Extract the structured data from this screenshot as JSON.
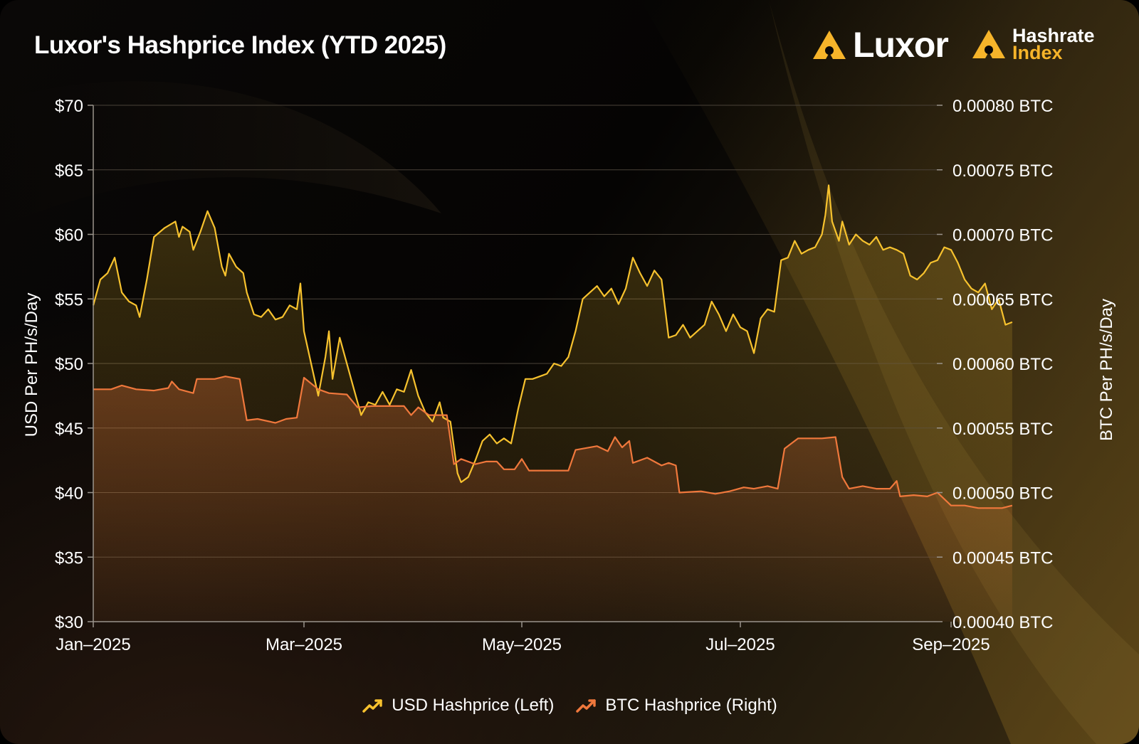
{
  "header": {
    "title": "Luxor's Hashprice Index (YTD 2025)",
    "brand_luxor": "Luxor",
    "brand_hri_line1": "Hashrate",
    "brand_hri_line2": "Index"
  },
  "colors": {
    "usd_line": "#f7c22e",
    "btc_line": "#f0783c",
    "grid": "#4a4238",
    "brand_accent": "#f6b42a"
  },
  "chart_data": {
    "type": "line",
    "title": "Luxor's Hashprice Index (YTD 2025)",
    "xlabel": "",
    "ylabel_left": "USD Per PH/s/Day",
    "ylabel_right": "BTC Per PH/s/Day",
    "ylim_left": [
      30,
      70
    ],
    "ylim_right": [
      0.0004,
      0.0008
    ],
    "x_ticks": [
      "Jan–2025",
      "Mar–2025",
      "May–2025",
      "Jul–2025",
      "Sep–2025"
    ],
    "y_ticks_left": [
      "$70",
      "$65",
      "$60",
      "$55",
      "$50",
      "$45",
      "$40",
      "$35",
      "$30"
    ],
    "y_ticks_right": [
      "0.00080 BTC",
      "0.00075 BTC",
      "0.00070 BTC",
      "0.00065 BTC",
      "0.00060 BTC",
      "0.00055 BTC",
      "0.00050 BTC",
      "0.00045 BTC",
      "0.00040 BTC"
    ],
    "grid": true,
    "legend_position": "bottom-center",
    "series": [
      {
        "name": "USD Hashprice (Left)",
        "axis": "left",
        "points": [
          [
            "2025-01-01",
            54.5
          ],
          [
            "2025-01-03",
            56.5
          ],
          [
            "2025-01-05",
            57
          ],
          [
            "2025-01-07",
            58.2
          ],
          [
            "2025-01-09",
            55.5
          ],
          [
            "2025-01-11",
            54.8
          ],
          [
            "2025-01-13",
            54.5
          ],
          [
            "2025-01-14",
            53.6
          ],
          [
            "2025-01-16",
            56.5
          ],
          [
            "2025-01-18",
            59.8
          ],
          [
            "2025-01-21",
            60.5
          ],
          [
            "2025-01-24",
            61
          ],
          [
            "2025-01-25",
            59.8
          ],
          [
            "2025-01-26",
            60.6
          ],
          [
            "2025-01-28",
            60.2
          ],
          [
            "2025-01-29",
            58.8
          ],
          [
            "2025-01-31",
            60.2
          ],
          [
            "2025-02-02",
            61.8
          ],
          [
            "2025-02-04",
            60.5
          ],
          [
            "2025-02-06",
            57.5
          ],
          [
            "2025-02-07",
            56.8
          ],
          [
            "2025-02-08",
            58.5
          ],
          [
            "2025-02-10",
            57.5
          ],
          [
            "2025-02-12",
            57
          ],
          [
            "2025-02-13",
            55.5
          ],
          [
            "2025-02-15",
            53.8
          ],
          [
            "2025-02-17",
            53.6
          ],
          [
            "2025-02-19",
            54.2
          ],
          [
            "2025-02-21",
            53.4
          ],
          [
            "2025-02-23",
            53.6
          ],
          [
            "2025-02-25",
            54.5
          ],
          [
            "2025-02-27",
            54.2
          ],
          [
            "2025-02-28",
            56.2
          ],
          [
            "2025-03-01",
            52.5
          ],
          [
            "2025-03-03",
            50
          ],
          [
            "2025-03-05",
            47.5
          ],
          [
            "2025-03-07",
            50.5
          ],
          [
            "2025-03-08",
            52.5
          ],
          [
            "2025-03-09",
            48.8
          ],
          [
            "2025-03-11",
            52
          ],
          [
            "2025-03-13",
            50
          ],
          [
            "2025-03-15",
            48
          ],
          [
            "2025-03-17",
            46
          ],
          [
            "2025-03-19",
            47
          ],
          [
            "2025-03-21",
            46.8
          ],
          [
            "2025-03-23",
            47.8
          ],
          [
            "2025-03-25",
            46.8
          ],
          [
            "2025-03-27",
            48
          ],
          [
            "2025-03-29",
            47.8
          ],
          [
            "2025-03-31",
            49.5
          ],
          [
            "2025-04-02",
            47.5
          ],
          [
            "2025-04-04",
            46.2
          ],
          [
            "2025-04-06",
            45.5
          ],
          [
            "2025-04-08",
            47
          ],
          [
            "2025-04-09",
            45.8
          ],
          [
            "2025-04-11",
            45.5
          ],
          [
            "2025-04-13",
            41.5
          ],
          [
            "2025-04-14",
            40.8
          ],
          [
            "2025-04-16",
            41.2
          ],
          [
            "2025-04-18",
            42.5
          ],
          [
            "2025-04-20",
            44
          ],
          [
            "2025-04-22",
            44.5
          ],
          [
            "2025-04-24",
            43.8
          ],
          [
            "2025-04-26",
            44.2
          ],
          [
            "2025-04-28",
            43.8
          ],
          [
            "2025-04-30",
            46.5
          ],
          [
            "2025-05-02",
            48.8
          ],
          [
            "2025-05-04",
            48.8
          ],
          [
            "2025-05-06",
            49
          ],
          [
            "2025-05-08",
            49.2
          ],
          [
            "2025-05-10",
            50
          ],
          [
            "2025-05-12",
            49.8
          ],
          [
            "2025-05-14",
            50.5
          ],
          [
            "2025-05-16",
            52.5
          ],
          [
            "2025-05-18",
            55
          ],
          [
            "2025-05-20",
            55.5
          ],
          [
            "2025-05-22",
            56
          ],
          [
            "2025-05-24",
            55.2
          ],
          [
            "2025-05-26",
            55.8
          ],
          [
            "2025-05-28",
            54.6
          ],
          [
            "2025-05-30",
            55.8
          ],
          [
            "2025-06-01",
            58.2
          ],
          [
            "2025-06-03",
            57
          ],
          [
            "2025-06-05",
            56
          ],
          [
            "2025-06-07",
            57.2
          ],
          [
            "2025-06-09",
            56.5
          ],
          [
            "2025-06-11",
            52
          ],
          [
            "2025-06-13",
            52.2
          ],
          [
            "2025-06-15",
            53
          ],
          [
            "2025-06-17",
            52
          ],
          [
            "2025-06-19",
            52.5
          ],
          [
            "2025-06-21",
            53
          ],
          [
            "2025-06-23",
            54.8
          ],
          [
            "2025-06-25",
            53.8
          ],
          [
            "2025-06-27",
            52.5
          ],
          [
            "2025-06-29",
            53.8
          ],
          [
            "2025-07-01",
            52.8
          ],
          [
            "2025-07-03",
            52.5
          ],
          [
            "2025-07-05",
            50.8
          ],
          [
            "2025-07-07",
            53.5
          ],
          [
            "2025-07-09",
            54.2
          ],
          [
            "2025-07-11",
            54
          ],
          [
            "2025-07-13",
            58
          ],
          [
            "2025-07-15",
            58.2
          ],
          [
            "2025-07-17",
            59.5
          ],
          [
            "2025-07-19",
            58.5
          ],
          [
            "2025-07-21",
            58.8
          ],
          [
            "2025-07-23",
            59
          ],
          [
            "2025-07-25",
            60
          ],
          [
            "2025-07-26",
            61.5
          ],
          [
            "2025-07-27",
            63.8
          ],
          [
            "2025-07-28",
            61
          ],
          [
            "2025-07-30",
            59.5
          ],
          [
            "2025-07-31",
            61
          ],
          [
            "2025-08-02",
            59.2
          ],
          [
            "2025-08-04",
            60
          ],
          [
            "2025-08-06",
            59.5
          ],
          [
            "2025-08-08",
            59.2
          ],
          [
            "2025-08-10",
            59.8
          ],
          [
            "2025-08-12",
            58.8
          ],
          [
            "2025-08-14",
            59
          ],
          [
            "2025-08-16",
            58.8
          ],
          [
            "2025-08-18",
            58.5
          ],
          [
            "2025-08-20",
            56.8
          ],
          [
            "2025-08-22",
            56.5
          ],
          [
            "2025-08-24",
            57
          ],
          [
            "2025-08-26",
            57.8
          ],
          [
            "2025-08-28",
            58
          ],
          [
            "2025-08-30",
            59
          ],
          [
            "2025-09-01",
            58.8
          ],
          [
            "2025-09-03",
            57.8
          ],
          [
            "2025-09-05",
            56.5
          ],
          [
            "2025-09-07",
            55.8
          ],
          [
            "2025-09-09",
            55.5
          ],
          [
            "2025-09-11",
            56.2
          ],
          [
            "2025-09-13",
            54.2
          ],
          [
            "2025-09-15",
            55
          ],
          [
            "2025-09-17",
            53
          ],
          [
            "2025-09-19",
            53.2
          ]
        ]
      },
      {
        "name": "BTC Hashprice (Right)",
        "axis": "right",
        "points": [
          [
            "2025-01-01",
            0.00058
          ],
          [
            "2025-01-06",
            0.00058
          ],
          [
            "2025-01-09",
            0.000583
          ],
          [
            "2025-01-13",
            0.00058
          ],
          [
            "2025-01-18",
            0.000579
          ],
          [
            "2025-01-22",
            0.000581
          ],
          [
            "2025-01-23",
            0.000586
          ],
          [
            "2025-01-25",
            0.00058
          ],
          [
            "2025-01-29",
            0.000577
          ],
          [
            "2025-01-30",
            0.000588
          ],
          [
            "2025-02-04",
            0.000588
          ],
          [
            "2025-02-07",
            0.00059
          ],
          [
            "2025-02-11",
            0.000588
          ],
          [
            "2025-02-13",
            0.000556
          ],
          [
            "2025-02-16",
            0.000557
          ],
          [
            "2025-02-21",
            0.000554
          ],
          [
            "2025-02-24",
            0.000557
          ],
          [
            "2025-02-27",
            0.000558
          ],
          [
            "2025-03-01",
            0.000589
          ],
          [
            "2025-03-05",
            0.00058
          ],
          [
            "2025-03-08",
            0.000577
          ],
          [
            "2025-03-13",
            0.000576
          ],
          [
            "2025-03-16",
            0.000566
          ],
          [
            "2025-03-20",
            0.000567
          ],
          [
            "2025-03-24",
            0.000567
          ],
          [
            "2025-03-29",
            0.000567
          ],
          [
            "2025-03-31",
            0.00056
          ],
          [
            "2025-04-02",
            0.000566
          ],
          [
            "2025-04-05",
            0.00056
          ],
          [
            "2025-04-10",
            0.00056
          ],
          [
            "2025-04-12",
            0.000522
          ],
          [
            "2025-04-14",
            0.000526
          ],
          [
            "2025-04-18",
            0.000522
          ],
          [
            "2025-04-21",
            0.000524
          ],
          [
            "2025-04-24",
            0.000524
          ],
          [
            "2025-04-26",
            0.000518
          ],
          [
            "2025-04-29",
            0.000518
          ],
          [
            "2025-05-01",
            0.000526
          ],
          [
            "2025-05-03",
            0.000517
          ],
          [
            "2025-05-10",
            0.000517
          ],
          [
            "2025-05-14",
            0.000517
          ],
          [
            "2025-05-16",
            0.000533
          ],
          [
            "2025-05-22",
            0.000536
          ],
          [
            "2025-05-25",
            0.000532
          ],
          [
            "2025-05-27",
            0.000543
          ],
          [
            "2025-05-29",
            0.000535
          ],
          [
            "2025-05-31",
            0.00054
          ],
          [
            "2025-06-01",
            0.000523
          ],
          [
            "2025-06-05",
            0.000527
          ],
          [
            "2025-06-09",
            0.000521
          ],
          [
            "2025-06-11",
            0.000523
          ],
          [
            "2025-06-13",
            0.000521
          ],
          [
            "2025-06-14",
            0.0005
          ],
          [
            "2025-06-20",
            0.000501
          ],
          [
            "2025-06-24",
            0.000499
          ],
          [
            "2025-06-28",
            0.000501
          ],
          [
            "2025-07-02",
            0.000504
          ],
          [
            "2025-07-05",
            0.000503
          ],
          [
            "2025-07-09",
            0.000505
          ],
          [
            "2025-07-12",
            0.000503
          ],
          [
            "2025-07-14",
            0.000534
          ],
          [
            "2025-07-18",
            0.000542
          ],
          [
            "2025-07-25",
            0.000542
          ],
          [
            "2025-07-29",
            0.000543
          ],
          [
            "2025-07-31",
            0.000512
          ],
          [
            "2025-08-02",
            0.000503
          ],
          [
            "2025-08-06",
            0.000505
          ],
          [
            "2025-08-10",
            0.000503
          ],
          [
            "2025-08-14",
            0.000503
          ],
          [
            "2025-08-16",
            0.000509
          ],
          [
            "2025-08-17",
            0.000497
          ],
          [
            "2025-08-21",
            0.000498
          ],
          [
            "2025-08-25",
            0.000497
          ],
          [
            "2025-08-28",
            0.0005
          ],
          [
            "2025-09-01",
            0.00049
          ],
          [
            "2025-09-05",
            0.00049
          ],
          [
            "2025-09-09",
            0.000488
          ],
          [
            "2025-09-13",
            0.000488
          ],
          [
            "2025-09-16",
            0.000488
          ],
          [
            "2025-09-19",
            0.00049
          ]
        ]
      }
    ]
  },
  "legend": {
    "usd_label": "USD Hashprice (Left)",
    "btc_label": "BTC Hashprice (Right)"
  }
}
